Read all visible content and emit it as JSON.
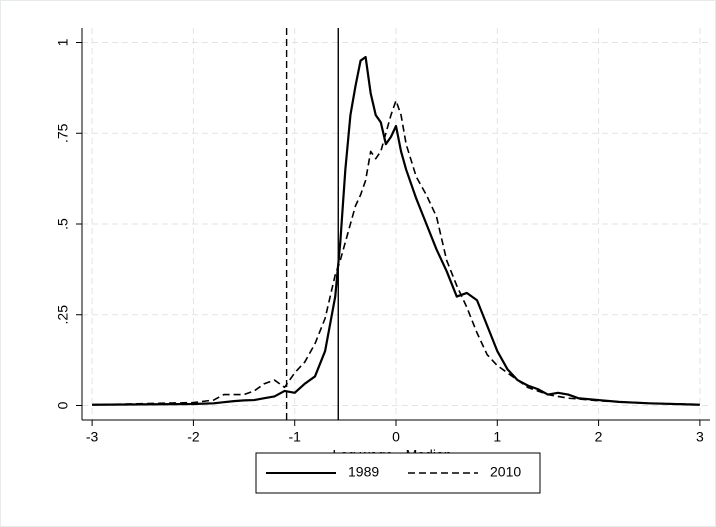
{
  "chart_data": {
    "type": "line",
    "x_label": "Log wage - Median",
    "x": [
      -3,
      -2.5,
      -2,
      -1.8,
      -1.7,
      -1.6,
      -1.5,
      -1.4,
      -1.3,
      -1.2,
      -1.1,
      -1.0,
      -0.9,
      -0.8,
      -0.7,
      -0.6,
      -0.55,
      -0.5,
      -0.45,
      -0.4,
      -0.35,
      -0.3,
      -0.25,
      -0.2,
      -0.15,
      -0.1,
      -0.05,
      0,
      0.05,
      0.1,
      0.2,
      0.3,
      0.4,
      0.5,
      0.6,
      0.7,
      0.8,
      0.9,
      1.0,
      1.1,
      1.2,
      1.3,
      1.4,
      1.5,
      1.6,
      1.7,
      1.8,
      2.0,
      2.2,
      2.5,
      3
    ],
    "series": [
      {
        "name": "1989",
        "color": "#000000",
        "dash": "solid",
        "vline": -0.57,
        "values": [
          0.002,
          0.003,
          0.004,
          0.006,
          0.009,
          0.012,
          0.014,
          0.015,
          0.02,
          0.025,
          0.04,
          0.035,
          0.06,
          0.08,
          0.15,
          0.3,
          0.45,
          0.65,
          0.8,
          0.88,
          0.95,
          0.96,
          0.86,
          0.8,
          0.78,
          0.72,
          0.74,
          0.77,
          0.7,
          0.65,
          0.57,
          0.5,
          0.43,
          0.37,
          0.3,
          0.31,
          0.29,
          0.22,
          0.15,
          0.1,
          0.07,
          0.055,
          0.045,
          0.03,
          0.035,
          0.03,
          0.02,
          0.015,
          0.01,
          0.006,
          0.002
        ]
      },
      {
        "name": "2010",
        "color": "#000000",
        "dash": "dashed",
        "vline": -1.08,
        "values": [
          0.002,
          0.005,
          0.008,
          0.015,
          0.03,
          0.03,
          0.03,
          0.04,
          0.06,
          0.07,
          0.05,
          0.09,
          0.12,
          0.17,
          0.24,
          0.36,
          0.4,
          0.45,
          0.5,
          0.55,
          0.58,
          0.62,
          0.7,
          0.68,
          0.7,
          0.75,
          0.8,
          0.84,
          0.8,
          0.72,
          0.63,
          0.58,
          0.52,
          0.4,
          0.33,
          0.27,
          0.2,
          0.14,
          0.11,
          0.09,
          0.07,
          0.05,
          0.04,
          0.03,
          0.025,
          0.02,
          0.018,
          0.013,
          0.01,
          0.006,
          0.003
        ]
      }
    ],
    "xlim": [
      -3.1,
      3.1
    ],
    "xticks": [
      -3,
      -2,
      -1,
      0,
      1,
      2,
      3
    ],
    "ylim": [
      -0.04,
      1.04
    ],
    "yticks": [
      0,
      {
        "value": 0.25,
        "label": ".25"
      },
      {
        "value": 0.5,
        "label": ".5"
      },
      {
        "value": 0.75,
        "label": ".75"
      },
      1
    ],
    "grid": true,
    "legend": "bottom"
  }
}
